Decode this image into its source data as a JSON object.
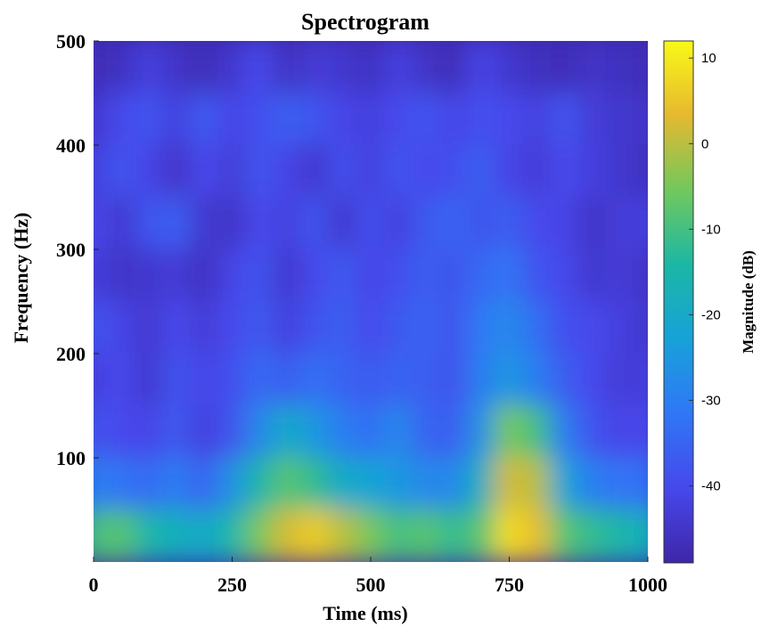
{
  "chart_data": {
    "type": "heatmap",
    "title": "Spectrogram",
    "xlabel": "Time (ms)",
    "ylabel": "Frequency (Hz)",
    "colorbar_label": "Magnitude (dB)",
    "xlim": [
      0,
      1000
    ],
    "ylim": [
      0,
      500
    ],
    "clim": [
      -49,
      12
    ],
    "colormap": "parula",
    "x_ticks": [
      0,
      250,
      500,
      750,
      1000
    ],
    "y_ticks": [
      100,
      200,
      300,
      400,
      500
    ],
    "colorbar_ticks": [
      10,
      0,
      -10,
      -20,
      -30,
      -40
    ],
    "time_bins_ms": [
      0,
      50,
      100,
      150,
      200,
      250,
      300,
      350,
      400,
      450,
      500,
      550,
      600,
      650,
      700,
      750,
      800,
      850,
      900,
      950,
      1000
    ],
    "freq_bins_hz": [
      475,
      425,
      375,
      325,
      275,
      225,
      175,
      125,
      75,
      25
    ],
    "magnitude_db": [
      [
        -47,
        -46,
        -42,
        -45,
        -47,
        -44,
        -40,
        -46,
        -43,
        -44,
        -46,
        -42,
        -45,
        -47,
        -41,
        -44,
        -46,
        -47,
        -45,
        -46,
        -47
      ],
      [
        -44,
        -40,
        -38,
        -42,
        -37,
        -41,
        -39,
        -36,
        -38,
        -41,
        -42,
        -40,
        -38,
        -41,
        -39,
        -40,
        -42,
        -38,
        -43,
        -44,
        -45
      ],
      [
        -42,
        -38,
        -41,
        -45,
        -40,
        -43,
        -38,
        -41,
        -44,
        -39,
        -42,
        -38,
        -40,
        -39,
        -36,
        -41,
        -43,
        -40,
        -42,
        -44,
        -46
      ],
      [
        -40,
        -44,
        -38,
        -36,
        -44,
        -45,
        -40,
        -42,
        -38,
        -44,
        -39,
        -42,
        -37,
        -35,
        -38,
        -36,
        -40,
        -41,
        -45,
        -43,
        -42
      ],
      [
        -42,
        -45,
        -44,
        -43,
        -46,
        -41,
        -38,
        -44,
        -40,
        -37,
        -41,
        -39,
        -36,
        -38,
        -34,
        -32,
        -38,
        -40,
        -44,
        -43,
        -45
      ],
      [
        -38,
        -41,
        -44,
        -40,
        -43,
        -40,
        -37,
        -42,
        -38,
        -36,
        -40,
        -37,
        -35,
        -38,
        -31,
        -28,
        -33,
        -39,
        -40,
        -42,
        -44
      ],
      [
        -42,
        -40,
        -44,
        -38,
        -41,
        -39,
        -34,
        -36,
        -33,
        -35,
        -37,
        -35,
        -36,
        -38,
        -30,
        -25,
        -30,
        -36,
        -40,
        -43,
        -42
      ],
      [
        -38,
        -40,
        -41,
        -37,
        -42,
        -38,
        -28,
        -20,
        -25,
        -30,
        -33,
        -28,
        -35,
        -36,
        -26,
        -5,
        -10,
        -30,
        -38,
        -41,
        -40
      ],
      [
        -30,
        -32,
        -34,
        -30,
        -35,
        -26,
        -15,
        -8,
        -12,
        -20,
        -22,
        -25,
        -28,
        -28,
        -18,
        2,
        0,
        -22,
        -30,
        -32,
        -33
      ],
      [
        -10,
        -8,
        -15,
        -18,
        -20,
        -15,
        -5,
        2,
        6,
        0,
        -5,
        -10,
        -8,
        -12,
        -8,
        8,
        4,
        -8,
        -12,
        -15,
        -18
      ]
    ]
  }
}
